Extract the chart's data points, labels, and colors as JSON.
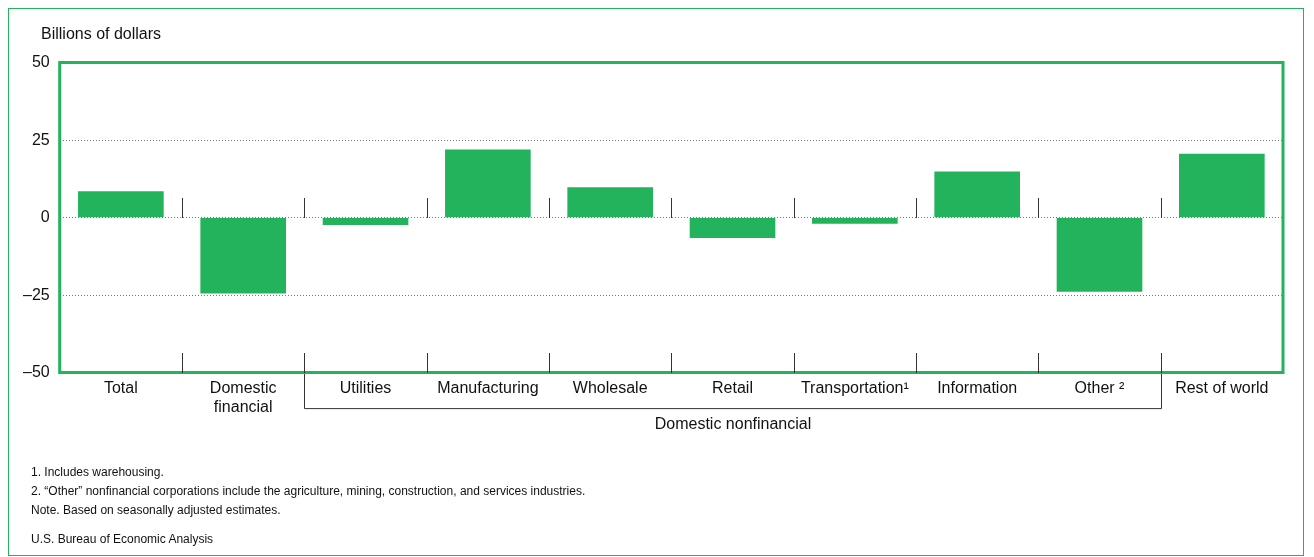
{
  "chart_data": {
    "type": "bar",
    "ylabel": "Billions of dollars",
    "categories": [
      "Total",
      "Domestic financial",
      "Utilities",
      "Manufacturing",
      "Wholesale",
      "Retail",
      "Transportation¹",
      "Information",
      "Other ²",
      "Rest of world"
    ],
    "values": [
      8.5,
      -24.5,
      -2.4,
      22,
      9.8,
      -6.6,
      -2,
      14.9,
      -23.9,
      20.6
    ],
    "color": "#22b35c",
    "ylim": [
      -50,
      50
    ],
    "yticks": [
      {
        "value": -50,
        "label": "–50"
      },
      {
        "value": -25,
        "label": "–25"
      },
      0,
      25,
      50
    ],
    "grid": "y",
    "legend": false,
    "annotations": [
      "Domestic nonfinancial",
      "1. Includes warehousing.",
      "2. “Other” nonfinancial corporations include the agriculture, mining, construction, and services industries.",
      "Note. Based on seasonally adjusted estimates.",
      "U.S. Bureau of Economic Analysis"
    ]
  }
}
